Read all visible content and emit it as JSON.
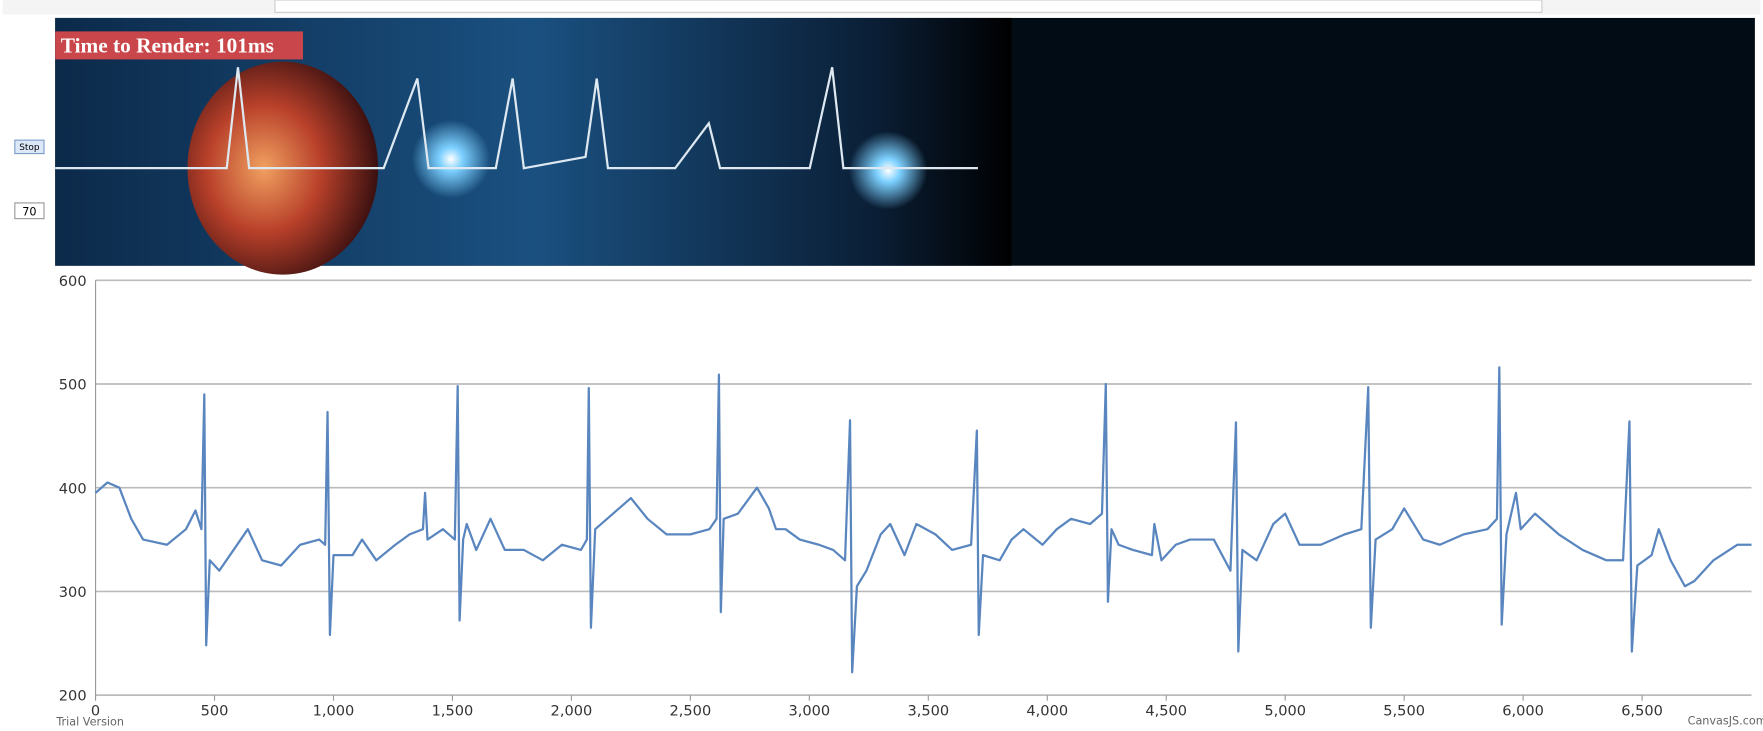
{
  "banner": {
    "render_time": "Time to Render: 101ms"
  },
  "controls": {
    "stop_button": "Stop",
    "rate_input": "70"
  },
  "footer": {
    "trial": "Trial Version",
    "credit": "CanvasJS.com"
  },
  "chart_data": {
    "type": "line",
    "color": "#5a86bf",
    "grid": true,
    "x": [
      0,
      50,
      100,
      150,
      200,
      300,
      380,
      420,
      445,
      457,
      465,
      480,
      520,
      580,
      640,
      700,
      780,
      860,
      940,
      965,
      975,
      985,
      1000,
      1080,
      1120,
      1180,
      1260,
      1320,
      1376,
      1385,
      1395,
      1460,
      1510,
      1522,
      1530,
      1545,
      1560,
      1600,
      1660,
      1720,
      1800,
      1880,
      1960,
      2040,
      2065,
      2073,
      2082,
      2100,
      2200,
      2250,
      2320,
      2400,
      2500,
      2580,
      2610,
      2620,
      2628,
      2640,
      2700,
      2780,
      2830,
      2860,
      2900,
      2960,
      3040,
      3100,
      3150,
      3171,
      3180,
      3200,
      3240,
      3300,
      3340,
      3400,
      3450,
      3530,
      3600,
      3680,
      3704,
      3712,
      3730,
      3800,
      3850,
      3900,
      3980,
      4040,
      4100,
      4180,
      4230,
      4246,
      4255,
      4270,
      4300,
      4360,
      4440,
      4450,
      4480,
      4540,
      4600,
      4700,
      4770,
      4793,
      4803,
      4820,
      4880,
      4950,
      5000,
      5060,
      5150,
      5250,
      5320,
      5349,
      5360,
      5380,
      5450,
      5500,
      5580,
      5650,
      5750,
      5850,
      5890,
      5900,
      5910,
      5930,
      5970,
      5990,
      6050,
      6150,
      6250,
      6350,
      6420,
      6447,
      6457,
      6480,
      6540,
      6570,
      6620,
      6680,
      6720,
      6800,
      6900,
      6960
    ],
    "values": [
      395,
      405,
      400,
      370,
      350,
      345,
      360,
      378,
      360,
      490,
      248,
      330,
      320,
      340,
      360,
      330,
      325,
      345,
      350,
      345,
      473,
      258,
      335,
      335,
      350,
      330,
      345,
      355,
      360,
      395,
      350,
      360,
      350,
      498,
      272,
      350,
      365,
      340,
      370,
      340,
      340,
      330,
      345,
      340,
      350,
      496,
      265,
      360,
      380,
      390,
      370,
      355,
      355,
      360,
      370,
      509,
      280,
      370,
      375,
      400,
      380,
      360,
      360,
      350,
      345,
      340,
      330,
      465,
      222,
      305,
      320,
      355,
      365,
      335,
      365,
      355,
      340,
      345,
      455,
      258,
      335,
      330,
      350,
      360,
      345,
      360,
      370,
      365,
      375,
      500,
      290,
      360,
      345,
      340,
      335,
      365,
      330,
      345,
      350,
      350,
      320,
      463,
      242,
      340,
      330,
      365,
      375,
      345,
      345,
      355,
      360,
      497,
      265,
      350,
      360,
      380,
      350,
      345,
      355,
      360,
      370,
      516,
      268,
      355,
      395,
      360,
      375,
      355,
      340,
      330,
      330,
      464,
      242,
      325,
      335,
      360,
      330,
      305,
      310,
      330,
      345,
      345
    ],
    "xlim": [
      0,
      6960
    ],
    "ylim": [
      200,
      600
    ],
    "xticks": [
      0,
      500,
      {
        "value": 1000,
        "label": "1,000"
      },
      {
        "value": 1500,
        "label": "1,500"
      },
      {
        "value": 2000,
        "label": "2,000"
      },
      {
        "value": 2500,
        "label": "2,500"
      },
      {
        "value": 3000,
        "label": "3,000"
      },
      {
        "value": 3500,
        "label": "3,500"
      },
      {
        "value": 4000,
        "label": "4,000"
      },
      {
        "value": 4500,
        "label": "4,500"
      },
      {
        "value": 5000,
        "label": "5,000"
      },
      {
        "value": 5500,
        "label": "5,500"
      },
      {
        "value": 6000,
        "label": "6,000"
      },
      {
        "value": 6500,
        "label": "6,500"
      }
    ],
    "yticks": [
      200,
      300,
      400,
      500,
      600
    ]
  }
}
